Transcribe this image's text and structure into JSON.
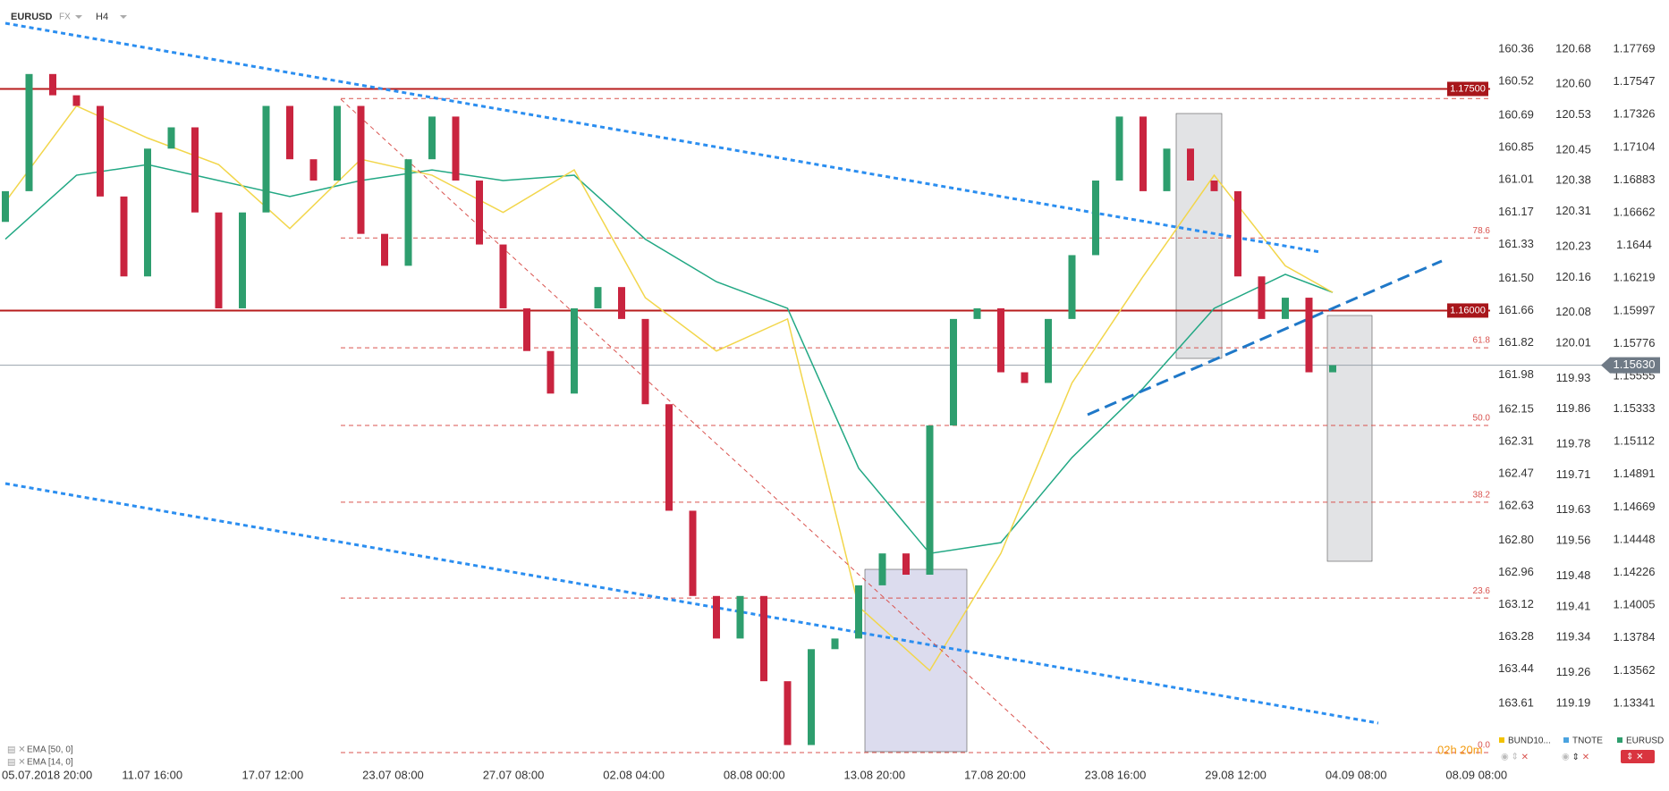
{
  "chart_data": {
    "type": "candlestick",
    "symbol": "EURUSD",
    "market": "FX",
    "timeframe": "H4",
    "up_color": "#2e9e6e",
    "down_color": "#c9243f",
    "open": [
      1.166,
      1.16808,
      1.17601,
      1.17457,
      1.17385,
      1.16772,
      1.16231,
      1.17096,
      1.1724,
      1.16664,
      1.16015,
      1.16664,
      1.17385,
      1.17024,
      1.1688,
      1.17385,
      1.16519,
      1.16303,
      1.17024,
      1.17313,
      1.1688,
      1.16447,
      1.16015,
      1.15726,
      1.15438,
      1.16015,
      1.16159,
      1.15943,
      1.15366,
      1.14645,
      1.14068,
      1.1378,
      1.14068,
      1.13491,
      1.13059,
      1.13708,
      1.1378,
      1.1414,
      1.14356,
      1.14212,
      1.15222,
      1.15943,
      1.16015,
      1.15582,
      1.1551,
      1.15943,
      1.16375,
      1.1688,
      1.17313,
      1.16808,
      1.17096,
      1.1688,
      1.16808,
      1.16231,
      1.15943,
      1.16087,
      1.15582
    ],
    "close": [
      1.16808,
      1.17601,
      1.17457,
      1.17385,
      1.16772,
      1.16231,
      1.17096,
      1.1724,
      1.16664,
      1.16015,
      1.16664,
      1.17385,
      1.17024,
      1.1688,
      1.17385,
      1.16519,
      1.16303,
      1.17024,
      1.17313,
      1.1688,
      1.16447,
      1.16015,
      1.15726,
      1.15438,
      1.16015,
      1.16159,
      1.15943,
      1.15366,
      1.14645,
      1.14068,
      1.1378,
      1.14068,
      1.13491,
      1.13059,
      1.13708,
      1.1378,
      1.1414,
      1.14356,
      1.14212,
      1.15222,
      1.15943,
      1.16015,
      1.15582,
      1.1551,
      1.15943,
      1.16375,
      1.1688,
      1.17313,
      1.16808,
      1.17096,
      1.1688,
      1.16808,
      1.16231,
      1.15943,
      1.16087,
      1.15582,
      1.1563
    ],
    "series": [
      {
        "name": "EMA [50, 0]",
        "color": "#22a884",
        "x": [
          0,
          3,
          6,
          9,
          12,
          15,
          18,
          21,
          24,
          27,
          30,
          33,
          36,
          39,
          42,
          45,
          48,
          51,
          54,
          56
        ],
        "values": [
          1.16483,
          1.16916,
          1.16988,
          1.1688,
          1.16772,
          1.1688,
          1.16952,
          1.1688,
          1.16916,
          1.16483,
          1.16195,
          1.16015,
          1.14933,
          1.14356,
          1.14429,
          1.15005,
          1.15474,
          1.16015,
          1.16245,
          1.16123
        ]
      },
      {
        "name": "EMA [14, 0]",
        "color": "#f2d64b",
        "x": [
          0,
          3,
          6,
          9,
          12,
          15,
          18,
          21,
          24,
          27,
          30,
          33,
          36,
          39,
          42,
          45,
          48,
          51,
          54,
          56
        ],
        "values": [
          1.16736,
          1.17385,
          1.17168,
          1.16988,
          1.16555,
          1.17024,
          1.16916,
          1.16664,
          1.16952,
          1.16087,
          1.15726,
          1.15943,
          1.13996,
          1.13563,
          1.14356,
          1.1551,
          1.16231,
          1.16916,
          1.16303,
          1.16123
        ]
      }
    ],
    "ylim": [
      1.13002,
      1.17981
    ],
    "yticks": [
      1.17769,
      1.17547,
      1.17326,
      1.17104,
      1.16883,
      1.16662,
      1.1644,
      {
        "value": 1.16219,
        "label": "1.16219"
      },
      1.15997,
      1.15776,
      1.15555,
      1.15333,
      1.15112,
      1.14891,
      1.14669,
      1.14448,
      1.14226,
      1.14005,
      1.13784,
      1.13562,
      1.13341
    ],
    "y2lim": [
      163.859,
      160.205
    ],
    "y2ticks": [
      160.36,
      160.52,
      160.69,
      160.85,
      161.01,
      161.17,
      161.33,
      {
        "value": 161.5,
        "label": "161.50"
      },
      161.66,
      161.82,
      161.98,
      162.15,
      162.31,
      162.47,
      162.63,
      {
        "value": 162.8,
        "label": "162.80"
      },
      162.96,
      163.12,
      163.28,
      163.44,
      163.61
    ],
    "y3lim": [
      119.076,
      120.751
    ],
    "y3ticks": [
      120.68,
      {
        "value": 120.6,
        "label": "120.60"
      },
      120.53,
      120.45,
      120.38,
      120.31,
      120.23,
      120.16,
      120.08,
      120.01,
      119.93,
      119.86,
      119.78,
      119.71,
      119.63,
      119.56,
      119.48,
      119.41,
      119.34,
      119.26,
      119.19
    ],
    "levels": [
      {
        "value": 1.175,
        "label": "1.17500"
      },
      {
        "value": 1.16,
        "label": "1.16000"
      }
    ],
    "last_price": {
      "value": 1.1563,
      "label": "1.15630"
    },
    "fib_top": 1.17435,
    "fib": [
      {
        "value": 1.16491,
        "label": "78.6"
      },
      {
        "value": 1.15748,
        "label": "61.8"
      },
      {
        "value": 1.15222,
        "label": "50.0"
      },
      {
        "value": 1.14703,
        "label": "38.2"
      },
      {
        "value": 1.14054,
        "label": "23.6"
      },
      {
        "value": 1.13008,
        "label": "0.0"
      }
    ],
    "x_labels": [
      "05.07.2018  20:00",
      "11.07  16:00",
      "17.07  12:00",
      "23.07  08:00",
      "27.07  08:00",
      "02.08  04:00",
      "08.08  00:00",
      "13.08  20:00",
      "17.08  20:00",
      "23.08  16:00",
      "29.08  12:00",
      "04.09  08:00",
      "08.09  08:00"
    ],
    "instruments": [
      {
        "name": "BUND10...",
        "color": "#f2c200"
      },
      {
        "name": "TNOTE",
        "color": "#4aa3e0"
      },
      {
        "name": "EURUSD",
        "color": "#2e9e6e"
      }
    ],
    "countdown": "02h 20m"
  }
}
